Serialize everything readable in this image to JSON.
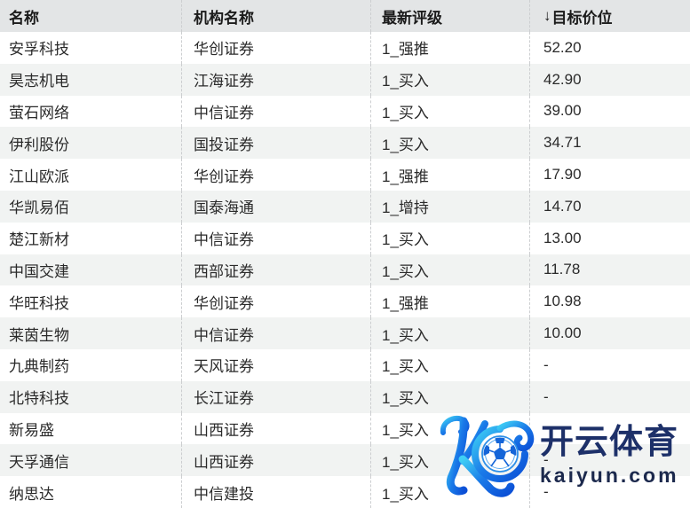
{
  "table": {
    "headers": [
      "名称",
      "机构名称",
      "最新评级",
      "目标价位"
    ],
    "sort_icon": "↓",
    "sorted_column": "目标价位",
    "rows": [
      {
        "name": "安孚科技",
        "institution": "华创证券",
        "rating": "1_强推",
        "target_price": "52.20"
      },
      {
        "name": "昊志机电",
        "institution": "江海证券",
        "rating": "1_买入",
        "target_price": "42.90"
      },
      {
        "name": "萤石网络",
        "institution": "中信证券",
        "rating": "1_买入",
        "target_price": "39.00"
      },
      {
        "name": "伊利股份",
        "institution": "国投证券",
        "rating": "1_买入",
        "target_price": "34.71"
      },
      {
        "name": "江山欧派",
        "institution": "华创证券",
        "rating": "1_强推",
        "target_price": "17.90"
      },
      {
        "name": "华凯易佰",
        "institution": "国泰海通",
        "rating": "1_增持",
        "target_price": "14.70"
      },
      {
        "name": "楚江新材",
        "institution": "中信证券",
        "rating": "1_买入",
        "target_price": "13.00"
      },
      {
        "name": "中国交建",
        "institution": "西部证券",
        "rating": "1_买入",
        "target_price": "11.78"
      },
      {
        "name": "华旺科技",
        "institution": "华创证券",
        "rating": "1_强推",
        "target_price": "10.98"
      },
      {
        "name": "莱茵生物",
        "institution": "中信证券",
        "rating": "1_买入",
        "target_price": "10.00"
      },
      {
        "name": "九典制药",
        "institution": "天风证券",
        "rating": "1_买入",
        "target_price": "-"
      },
      {
        "name": "北特科技",
        "institution": "长江证券",
        "rating": "1_买入",
        "target_price": "-"
      },
      {
        "name": "新易盛",
        "institution": "山西证券",
        "rating": "1_买入",
        "target_price": "-"
      },
      {
        "name": "天孚通信",
        "institution": "山西证券",
        "rating": "1_买入",
        "target_price": "-"
      },
      {
        "name": "纳思达",
        "institution": "中信建投",
        "rating": "1_买入",
        "target_price": "-"
      }
    ]
  },
  "colors": {
    "header_bg": "#e3e5e6",
    "row_alt_bg": "#f1f3f2",
    "row_bg": "#ffffff",
    "text": "#2a2a2a",
    "divider": "#ccced0",
    "brand_cn_text": "#1d3069",
    "brand_domain_text": "#1c294d",
    "logo_gradient_start": "#3fd0f5",
    "logo_gradient_end": "#0b4fd6"
  },
  "watermark": {
    "logo_icon": "kaiyun-k-football-logo",
    "brand_cn": "开云体育",
    "brand_domain": "kaiyun.com"
  }
}
